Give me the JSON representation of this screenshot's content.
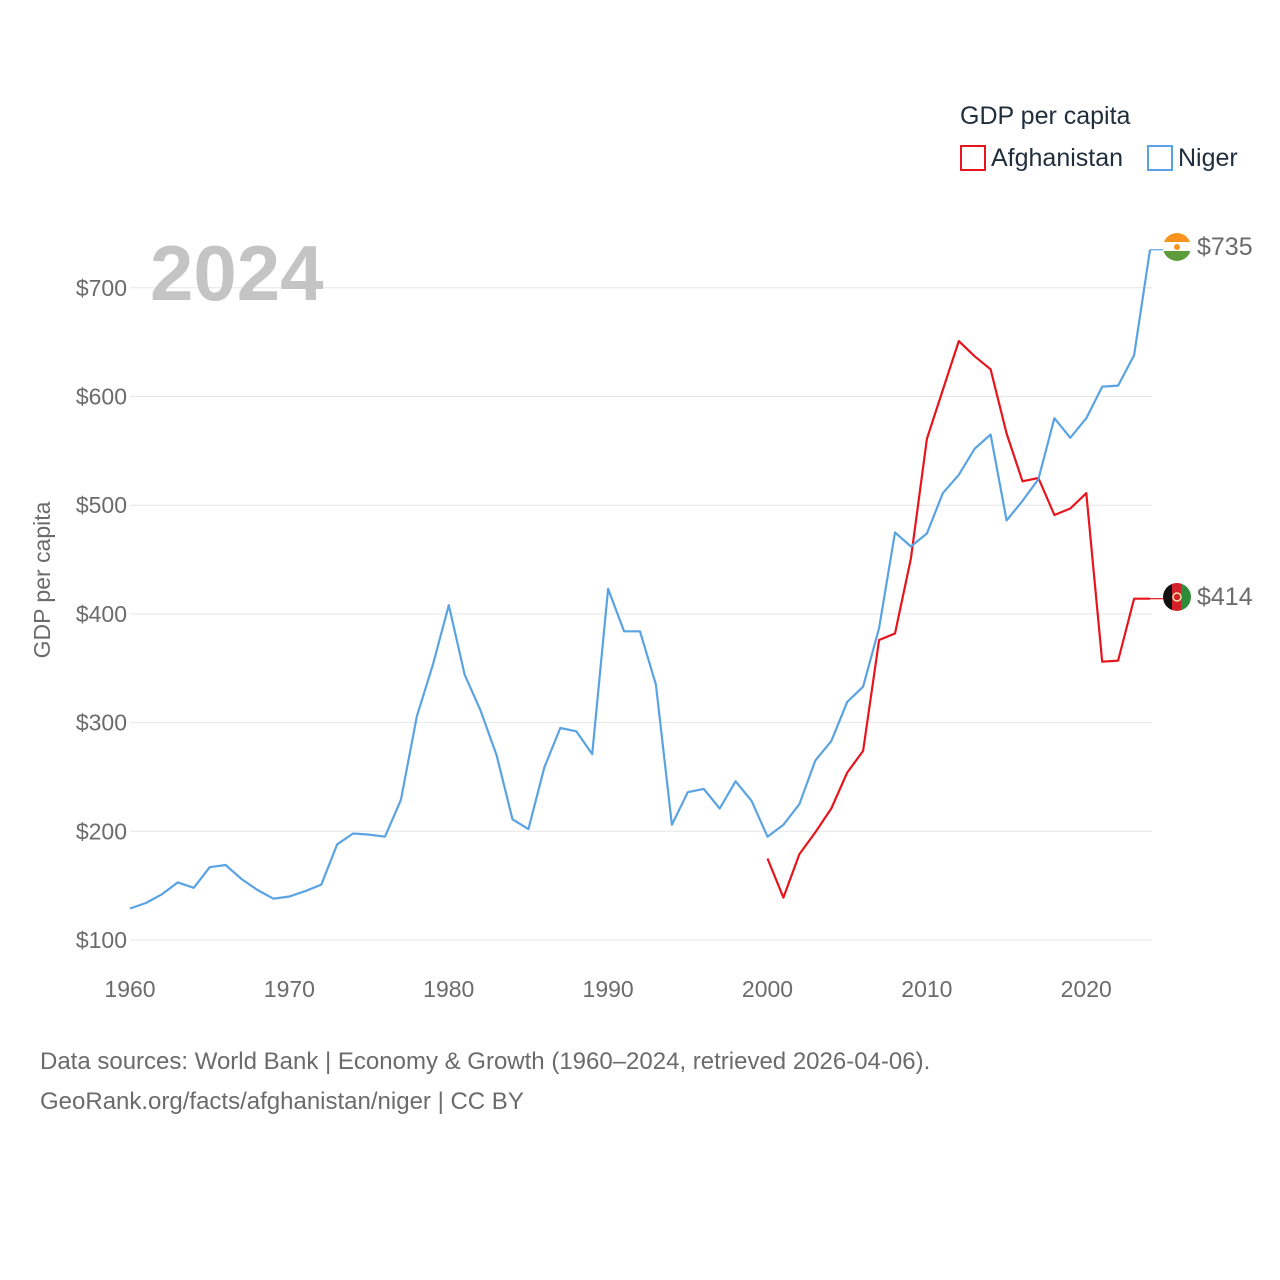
{
  "chart_data": {
    "type": "line",
    "title": "GDP per capita",
    "xlabel": "",
    "ylabel": "GDP per capita",
    "year_label": "2024",
    "xlim": [
      1960,
      2024
    ],
    "ylim": [
      100,
      750
    ],
    "x_ticks": [
      "1960",
      "1970",
      "1980",
      "1990",
      "2000",
      "2010",
      "2020"
    ],
    "y_ticks": [
      "$100",
      "$200",
      "$300",
      "$400",
      "$500",
      "$600",
      "$700"
    ],
    "grid": "horizontal",
    "legend_position": "top-right",
    "series": [
      {
        "name": "Afghanistan",
        "color": "#e8141c",
        "end_label": "$414",
        "x": [
          2000,
          2001,
          2002,
          2003,
          2004,
          2005,
          2006,
          2007,
          2008,
          2009,
          2010,
          2011,
          2012,
          2013,
          2014,
          2015,
          2016,
          2017,
          2018,
          2019,
          2020,
          2021,
          2022,
          2023,
          2024
        ],
        "y": [
          175,
          139,
          179,
          199,
          221,
          254,
          274,
          376,
          382,
          451,
          561,
          606,
          651,
          637,
          625,
          566,
          522,
          525,
          491,
          497,
          511,
          356,
          357,
          414,
          414
        ]
      },
      {
        "name": "Niger",
        "color": "#5aa3e3",
        "end_label": "$735",
        "x": [
          1960,
          1961,
          1962,
          1963,
          1964,
          1965,
          1966,
          1967,
          1968,
          1969,
          1970,
          1971,
          1972,
          1973,
          1974,
          1975,
          1976,
          1977,
          1978,
          1979,
          1980,
          1981,
          1982,
          1983,
          1984,
          1985,
          1986,
          1987,
          1988,
          1989,
          1990,
          1991,
          1992,
          1993,
          1994,
          1995,
          1996,
          1997,
          1998,
          1999,
          2000,
          2001,
          2002,
          2003,
          2004,
          2005,
          2006,
          2007,
          2008,
          2009,
          2010,
          2011,
          2012,
          2013,
          2014,
          2015,
          2016,
          2017,
          2018,
          2019,
          2020,
          2021,
          2022,
          2023,
          2024
        ],
        "y": [
          129,
          134,
          142,
          153,
          148,
          167,
          169,
          156,
          146,
          138,
          140,
          145,
          151,
          188,
          198,
          197,
          195,
          229,
          306,
          353,
          408,
          344,
          311,
          270,
          211,
          202,
          259,
          295,
          292,
          271,
          423,
          384,
          384,
          335,
          206,
          236,
          239,
          221,
          246,
          228,
          195,
          206,
          225,
          265,
          283,
          319,
          333,
          387,
          475,
          462,
          474,
          511,
          528,
          552,
          565,
          486,
          504,
          524,
          580,
          562,
          580,
          609,
          610,
          638,
          735
        ]
      }
    ]
  },
  "source": {
    "line1": "Data sources: World Bank | Economy & Growth (1960–2024, retrieved 2026-04-06).",
    "line2": "GeoRank.org/facts/afghanistan/niger | CC BY"
  }
}
